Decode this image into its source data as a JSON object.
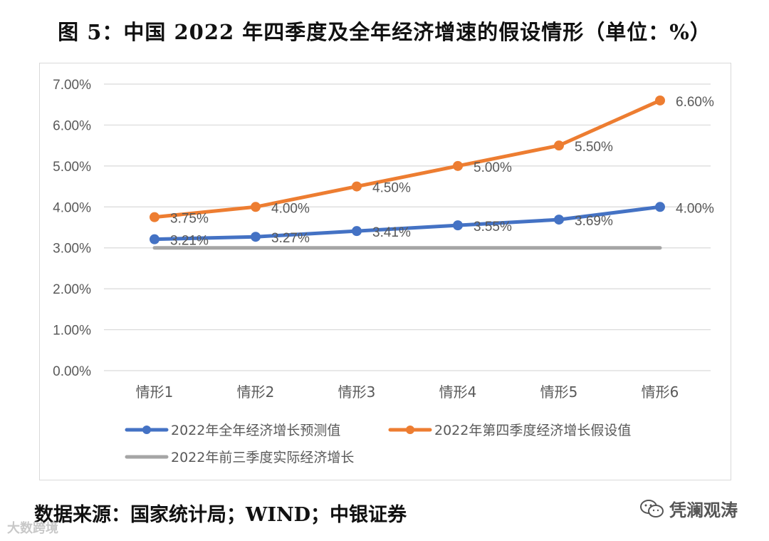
{
  "title": "图 5：中国 2022 年四季度及全年经济增速的假设情形（单位：%）",
  "source": "数据来源：国家统计局；WIND；中银证券",
  "watermark_left": "大数跨境",
  "watermark_right": "凭澜观涛",
  "chart_data": {
    "type": "line",
    "categories": [
      "情形1",
      "情形2",
      "情形3",
      "情形4",
      "情形5",
      "情形6"
    ],
    "ylim": [
      0,
      7
    ],
    "yticks": [
      0,
      1,
      2,
      3,
      4,
      5,
      6,
      7
    ],
    "ytick_labels": [
      "0.00%",
      "1.00%",
      "2.00%",
      "3.00%",
      "4.00%",
      "5.00%",
      "6.00%",
      "7.00%"
    ],
    "grid": true,
    "legend_position": "bottom",
    "series": [
      {
        "name": "2022年全年经济增长预测值",
        "color": "#4472C4",
        "values": [
          3.21,
          3.27,
          3.41,
          3.55,
          3.69,
          4.0
        ],
        "labels": [
          "3.21%",
          "3.27%",
          "3.41%",
          "3.55%",
          "3.69%",
          "4.00%"
        ],
        "markers": true
      },
      {
        "name": "2022年第四季度经济增长假设值",
        "color": "#ED7D31",
        "values": [
          3.75,
          4.0,
          4.5,
          5.0,
          5.5,
          6.6
        ],
        "labels": [
          "3.75%",
          "4.00%",
          "4.50%",
          "5.00%",
          "5.50%",
          "6.60%"
        ],
        "markers": true
      },
      {
        "name": "2022年前三季度实际经济增长",
        "color": "#A5A5A5",
        "values": [
          3.0,
          3.0,
          3.0,
          3.0,
          3.0,
          3.0
        ],
        "markers": false
      }
    ]
  }
}
